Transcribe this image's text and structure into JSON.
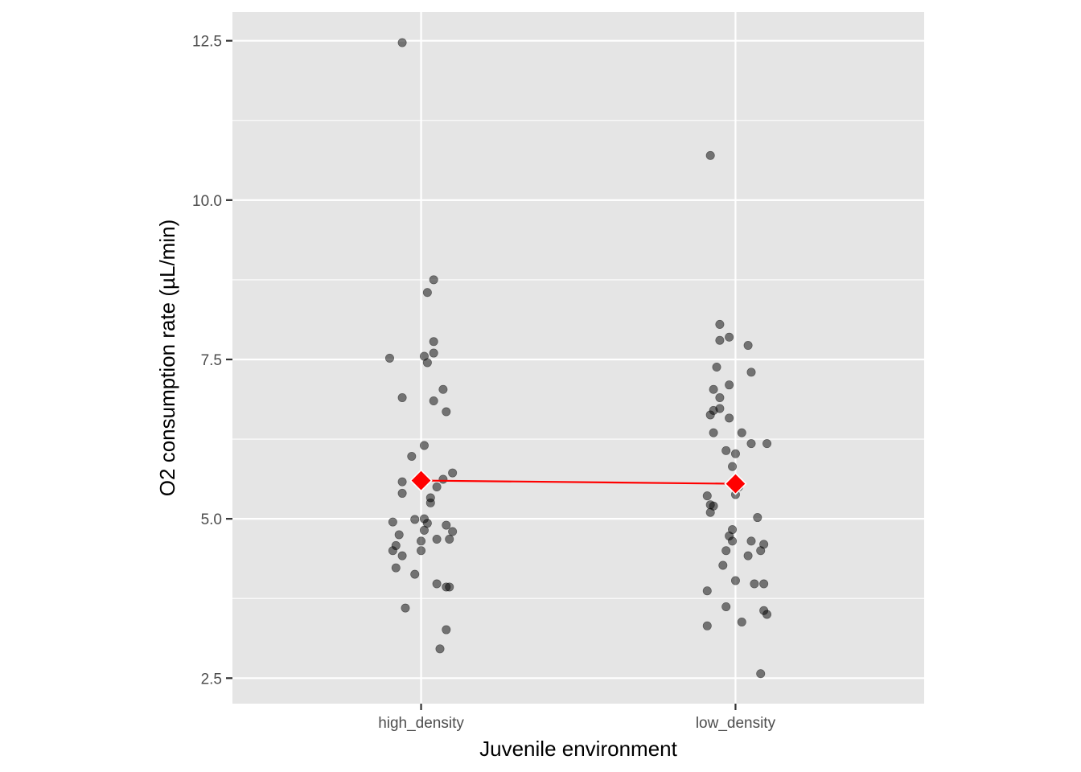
{
  "chart_data": {
    "type": "scatter",
    "xlabel": "Juvenile environment",
    "ylabel": "O2 consumption rate (µL/min)",
    "categories": [
      "high_density",
      "low_density"
    ],
    "ylim": [
      2.1,
      12.95
    ],
    "yticks": [
      "2.5",
      "5.0",
      "7.5",
      "10.0",
      "12.5"
    ],
    "grid": true,
    "points": [
      {
        "group": "high_density",
        "points": [
          {
            "x": -0.06,
            "y": 12.47
          },
          {
            "x": 0.04,
            "y": 8.75
          },
          {
            "x": 0.02,
            "y": 8.55
          },
          {
            "x": 0.04,
            "y": 7.78
          },
          {
            "x": 0.04,
            "y": 7.6
          },
          {
            "x": 0.01,
            "y": 7.55
          },
          {
            "x": -0.1,
            "y": 7.52
          },
          {
            "x": 0.02,
            "y": 7.45
          },
          {
            "x": 0.07,
            "y": 7.03
          },
          {
            "x": -0.06,
            "y": 6.9
          },
          {
            "x": 0.04,
            "y": 6.85
          },
          {
            "x": 0.08,
            "y": 6.68
          },
          {
            "x": 0.01,
            "y": 6.15
          },
          {
            "x": -0.03,
            "y": 5.98
          },
          {
            "x": 0.1,
            "y": 5.72
          },
          {
            "x": 0.07,
            "y": 5.62
          },
          {
            "x": -0.06,
            "y": 5.58
          },
          {
            "x": 0.05,
            "y": 5.5
          },
          {
            "x": -0.06,
            "y": 5.4
          },
          {
            "x": 0.03,
            "y": 5.33
          },
          {
            "x": 0.03,
            "y": 5.25
          },
          {
            "x": -0.02,
            "y": 4.99
          },
          {
            "x": 0.01,
            "y": 5.0
          },
          {
            "x": -0.09,
            "y": 4.95
          },
          {
            "x": 0.02,
            "y": 4.93
          },
          {
            "x": 0.08,
            "y": 4.9
          },
          {
            "x": 0.01,
            "y": 4.82
          },
          {
            "x": 0.1,
            "y": 4.8
          },
          {
            "x": -0.07,
            "y": 4.75
          },
          {
            "x": 0.05,
            "y": 4.68
          },
          {
            "x": 0.09,
            "y": 4.68
          },
          {
            "x": 0.0,
            "y": 4.65
          },
          {
            "x": -0.08,
            "y": 4.58
          },
          {
            "x": 0.0,
            "y": 4.5
          },
          {
            "x": -0.09,
            "y": 4.5
          },
          {
            "x": -0.06,
            "y": 4.42
          },
          {
            "x": -0.08,
            "y": 4.23
          },
          {
            "x": -0.02,
            "y": 4.13
          },
          {
            "x": 0.05,
            "y": 3.98
          },
          {
            "x": 0.08,
            "y": 3.93
          },
          {
            "x": 0.09,
            "y": 3.93
          },
          {
            "x": -0.05,
            "y": 3.6
          },
          {
            "x": 0.08,
            "y": 3.26
          },
          {
            "x": 0.06,
            "y": 2.96
          }
        ]
      },
      {
        "group": "low_density",
        "points": [
          {
            "x": -0.08,
            "y": 10.7
          },
          {
            "x": -0.05,
            "y": 8.05
          },
          {
            "x": -0.02,
            "y": 7.85
          },
          {
            "x": -0.05,
            "y": 7.8
          },
          {
            "x": 0.04,
            "y": 7.72
          },
          {
            "x": -0.06,
            "y": 7.38
          },
          {
            "x": 0.05,
            "y": 7.3
          },
          {
            "x": -0.02,
            "y": 7.1
          },
          {
            "x": -0.07,
            "y": 7.03
          },
          {
            "x": -0.05,
            "y": 6.9
          },
          {
            "x": -0.05,
            "y": 6.73
          },
          {
            "x": -0.07,
            "y": 6.7
          },
          {
            "x": -0.08,
            "y": 6.63
          },
          {
            "x": -0.02,
            "y": 6.58
          },
          {
            "x": -0.07,
            "y": 6.35
          },
          {
            "x": 0.02,
            "y": 6.35
          },
          {
            "x": 0.05,
            "y": 6.18
          },
          {
            "x": 0.1,
            "y": 6.18
          },
          {
            "x": -0.03,
            "y": 6.07
          },
          {
            "x": 0.0,
            "y": 6.02
          },
          {
            "x": -0.01,
            "y": 5.82
          },
          {
            "x": 0.0,
            "y": 5.6
          },
          {
            "x": 0.01,
            "y": 5.5
          },
          {
            "x": 0.0,
            "y": 5.38
          },
          {
            "x": -0.09,
            "y": 5.36
          },
          {
            "x": -0.08,
            "y": 5.22
          },
          {
            "x": -0.07,
            "y": 5.2
          },
          {
            "x": -0.08,
            "y": 5.1
          },
          {
            "x": 0.07,
            "y": 5.02
          },
          {
            "x": -0.01,
            "y": 4.83
          },
          {
            "x": -0.02,
            "y": 4.73
          },
          {
            "x": 0.05,
            "y": 4.65
          },
          {
            "x": -0.01,
            "y": 4.65
          },
          {
            "x": 0.09,
            "y": 4.6
          },
          {
            "x": -0.03,
            "y": 4.5
          },
          {
            "x": 0.08,
            "y": 4.5
          },
          {
            "x": 0.04,
            "y": 4.42
          },
          {
            "x": -0.04,
            "y": 4.27
          },
          {
            "x": 0.0,
            "y": 4.03
          },
          {
            "x": 0.06,
            "y": 3.98
          },
          {
            "x": 0.09,
            "y": 3.98
          },
          {
            "x": -0.09,
            "y": 3.87
          },
          {
            "x": -0.03,
            "y": 3.62
          },
          {
            "x": 0.09,
            "y": 3.56
          },
          {
            "x": 0.1,
            "y": 3.5
          },
          {
            "x": 0.02,
            "y": 3.38
          },
          {
            "x": -0.09,
            "y": 3.32
          },
          {
            "x": 0.08,
            "y": 2.57
          }
        ]
      }
    ],
    "means": [
      {
        "category": "high_density",
        "value": 5.6
      },
      {
        "category": "low_density",
        "value": 5.55
      }
    ],
    "colors": {
      "panel": "#e5e5e5",
      "grid": "#ffffff",
      "points": "#000000",
      "mean": "#ff0000",
      "mean_outline": "#ffffff",
      "line": "#ff0000"
    }
  }
}
